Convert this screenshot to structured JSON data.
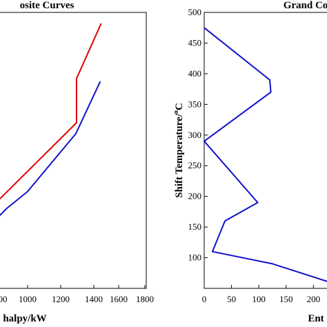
{
  "chart_data": [
    {
      "type": "line",
      "title": "osite Curves",
      "xlabel": "halpy/kW",
      "ylabel": "",
      "xlim": [
        900,
        1800
      ],
      "ylim": [
        0,
        500
      ],
      "x_ticks": [
        "00",
        "1000",
        "1200",
        "1400",
        "1600",
        "1800"
      ],
      "x_tick_values": [
        1000,
        1000,
        1200,
        1400,
        1600,
        1800
      ],
      "y_ticks": [],
      "grid": false,
      "series": [
        {
          "color": "#e00000",
          "x": [
            900,
            1375,
            1375,
            1525
          ],
          "y": [
            160,
            300,
            380,
            480
          ]
        },
        {
          "color": "#1010cc",
          "x": [
            900,
            950,
            1075,
            1370,
            1520
          ],
          "y": [
            130,
            145,
            175,
            280,
            375
          ]
        }
      ]
    },
    {
      "type": "line",
      "title": "Grand Co",
      "xlabel": "Ent",
      "ylabel": "Shift Temperature/°C",
      "ylabel_main": "Shift Temperature/",
      "ylabel_sup": "o",
      "ylabel_unit": "C",
      "xlim": [
        0,
        240
      ],
      "ylim": [
        50,
        500
      ],
      "x_ticks": [
        "0",
        "50",
        "100",
        "150",
        "200"
      ],
      "y_ticks": [
        "100",
        "150",
        "200",
        "250",
        "300",
        "350",
        "400",
        "450",
        "500"
      ],
      "grid": false,
      "series": [
        {
          "color": "#1010cc",
          "x": [
            0,
            120,
            122,
            0,
            98,
            38,
            15,
            125,
            230
          ],
          "y": [
            475,
            390,
            370,
            290,
            190,
            160,
            110,
            90,
            60
          ]
        }
      ]
    }
  ]
}
